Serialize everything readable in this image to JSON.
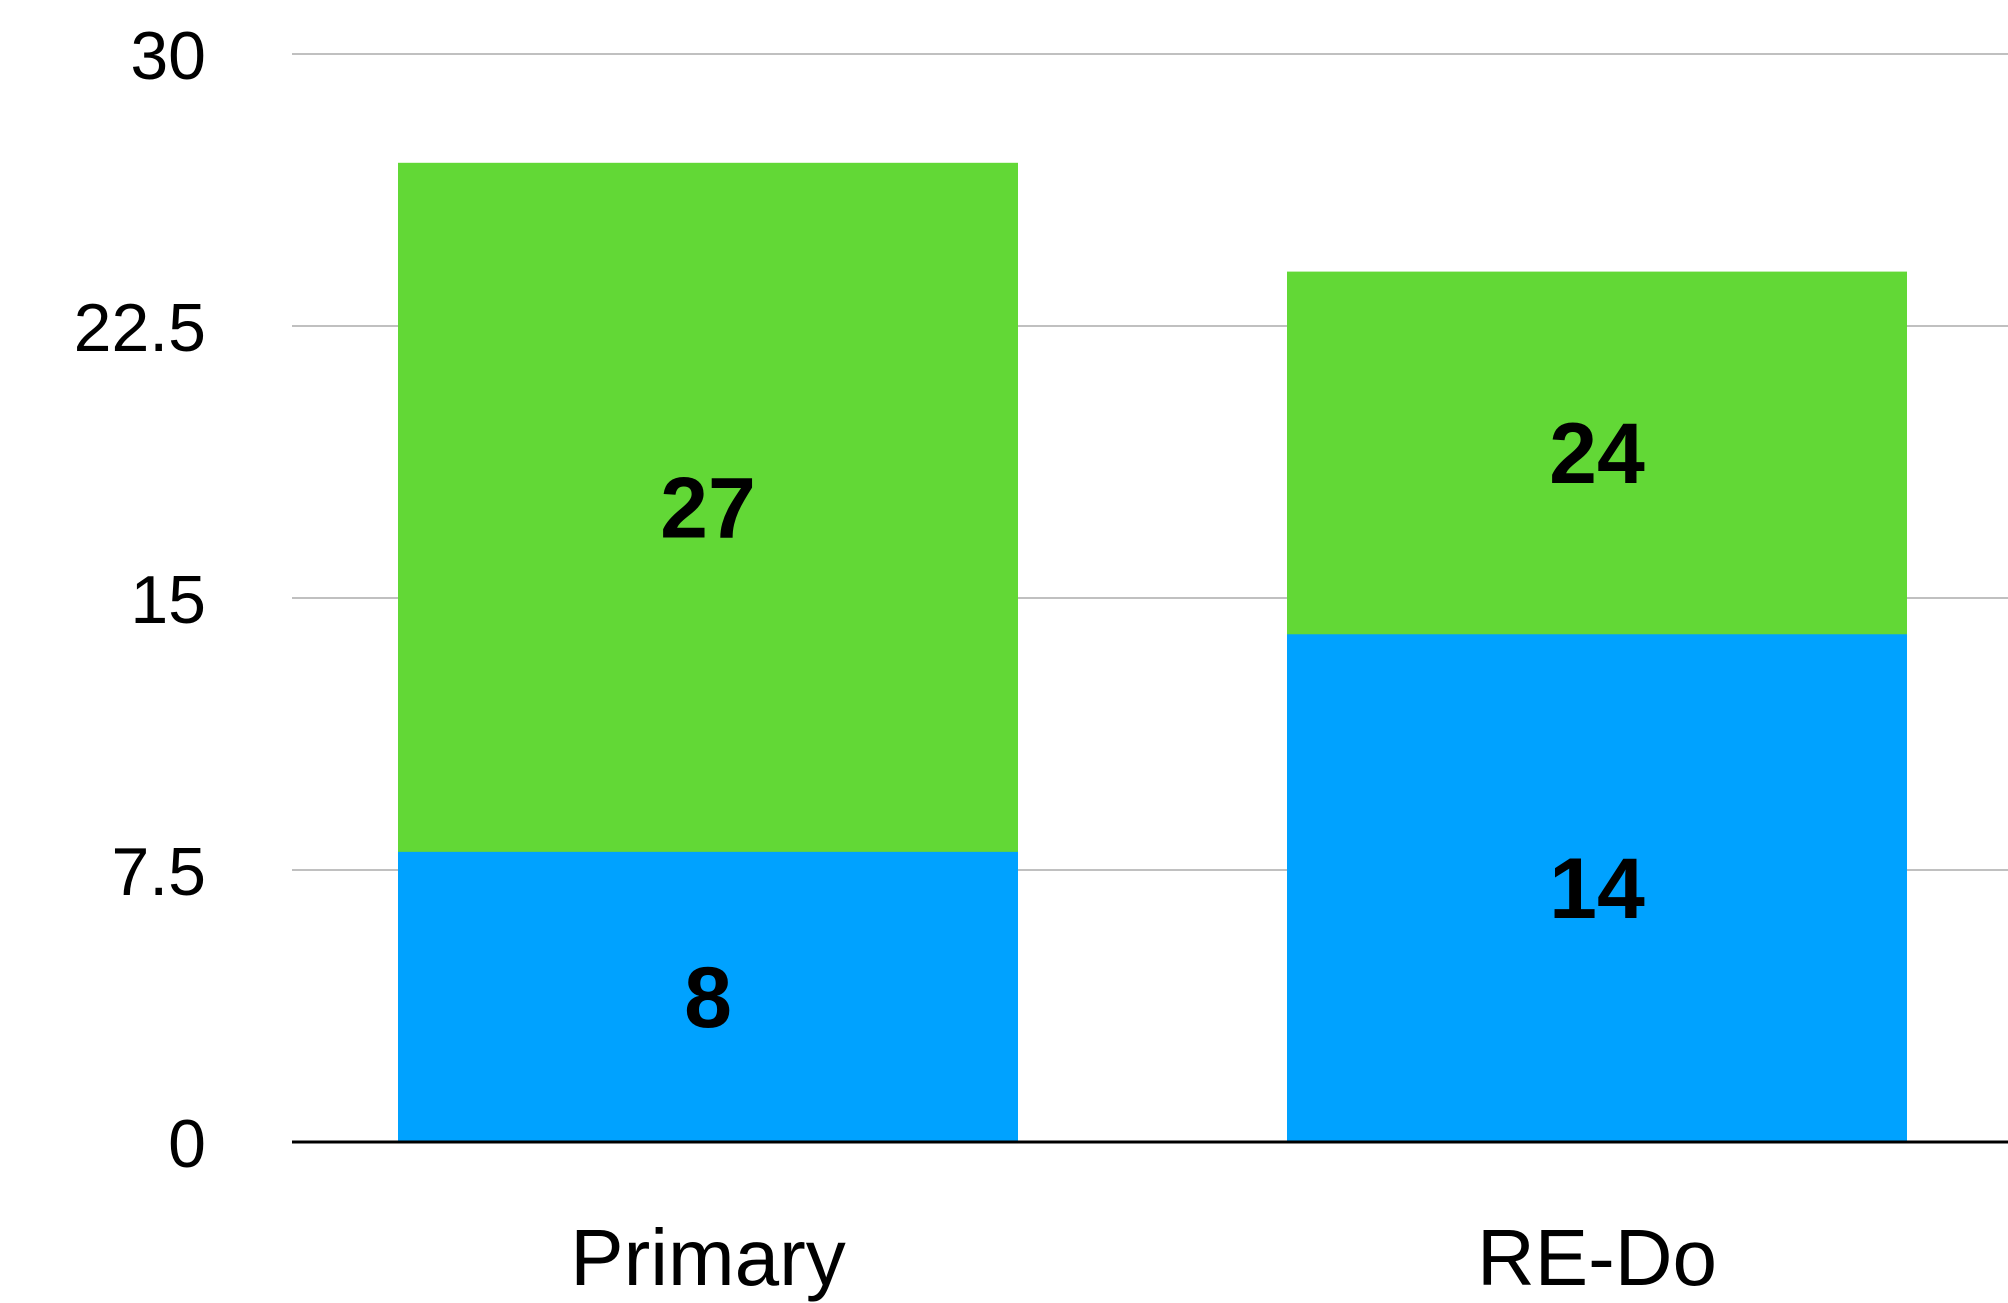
{
  "chart_data": {
    "type": "bar",
    "stacked": false,
    "overlaid": true,
    "categories": [
      "Primary",
      "RE-Do"
    ],
    "series": [
      {
        "values": [
          27,
          24
        ],
        "color": "#62d836"
      },
      {
        "values": [
          8,
          14
        ],
        "color": "#00a2ff"
      }
    ],
    "yticks": [
      "0",
      "7.5",
      "15",
      "22.5",
      "30"
    ],
    "ylim": [
      0,
      30
    ],
    "grid": true,
    "legend": "none",
    "title": "",
    "xlabel": "",
    "ylabel": ""
  }
}
